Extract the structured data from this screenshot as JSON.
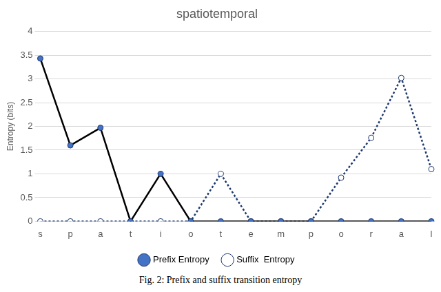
{
  "chart_data": {
    "type": "line",
    "title": "spatiotemporal",
    "caption": "Fig. 2: Prefix and suffix transition entropy",
    "y_label": "Entropy (bits)",
    "categories": [
      "s",
      "p",
      "a",
      "t",
      "i",
      "o",
      "t",
      "e",
      "m",
      "p",
      "o",
      "r",
      "a",
      "l"
    ],
    "series": [
      {
        "name": "Prefix Entropy",
        "color": "#000000",
        "marker": "filled_circle",
        "line_style": "solid",
        "values": [
          3.43,
          1.6,
          1.97,
          0,
          1.0,
          0,
          0,
          0,
          0,
          0,
          0,
          0,
          0,
          0
        ]
      },
      {
        "name": "Suffix  Entropy",
        "color": "#1f3a6e",
        "marker": "open_circle",
        "line_style": "dotted",
        "values": [
          0,
          0,
          0,
          0,
          0,
          0,
          1.0,
          0,
          0,
          0,
          0.92,
          1.76,
          3.02,
          1.1
        ]
      }
    ],
    "ylim": [
      0,
      4
    ],
    "yticks": [
      0,
      0.5,
      1,
      1.5,
      2,
      2.5,
      3,
      3.5,
      4
    ],
    "grid": true,
    "legend": "bottom"
  }
}
